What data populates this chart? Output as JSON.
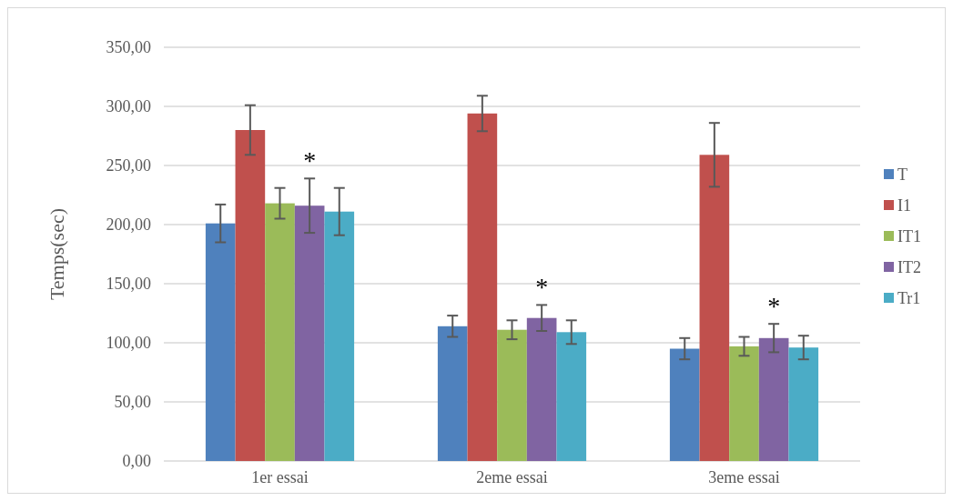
{
  "chart_data": {
    "type": "bar",
    "ylabel": "Temps(sec)",
    "categories": [
      "1er essai",
      "2eme essai",
      "3eme essai"
    ],
    "series": [
      {
        "name": "T",
        "color": "#4f81bd",
        "values": [
          201,
          114,
          95
        ],
        "errors": [
          16,
          9,
          9
        ]
      },
      {
        "name": "I1",
        "color": "#c0504d",
        "values": [
          280,
          294,
          259
        ],
        "errors": [
          21,
          15,
          27
        ]
      },
      {
        "name": "IT1",
        "color": "#9bbb59",
        "values": [
          218,
          111,
          97
        ],
        "errors": [
          13,
          8,
          8
        ]
      },
      {
        "name": "IT2",
        "color": "#8064a2",
        "values": [
          216,
          121,
          104
        ],
        "errors": [
          23,
          11,
          12
        ]
      },
      {
        "name": "Tr1",
        "color": "#4bacc6",
        "values": [
          211,
          109,
          96
        ],
        "errors": [
          20,
          10,
          10
        ]
      }
    ],
    "ylim": [
      0,
      350
    ],
    "yticks": [
      {
        "value": 0,
        "label": "0,00"
      },
      {
        "value": 50,
        "label": "50,00"
      },
      {
        "value": 100,
        "label": "100,00"
      },
      {
        "value": 150,
        "label": "150,00"
      },
      {
        "value": 200,
        "label": "200,00"
      },
      {
        "value": 250,
        "label": "250,00"
      },
      {
        "value": 300,
        "label": "300,00"
      },
      {
        "value": 350,
        "label": "350,00"
      }
    ],
    "annotations": [
      "*",
      "*",
      "*"
    ],
    "grid": "y",
    "legend": "right"
  }
}
